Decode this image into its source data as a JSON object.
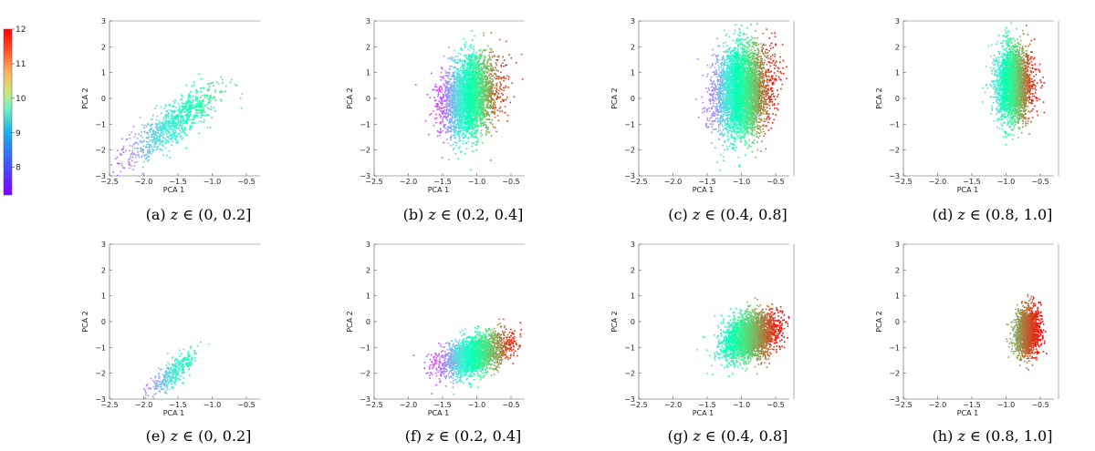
{
  "colorbar": {
    "ticks": [
      "12",
      "11",
      "10",
      "9",
      "8"
    ],
    "range": [
      7.2,
      12
    ],
    "colormap": "rainbow",
    "tick_values": [
      12,
      11,
      10,
      9,
      8
    ]
  },
  "chart_data": [
    {
      "type": "scatter",
      "panel": "a",
      "xlabel": "PCA 1",
      "ylabel": "PCA 2",
      "xlim": [
        -2.5,
        -0.3
      ],
      "ylim": [
        -3,
        3
      ],
      "xticks": [
        "−2.5",
        "−2.0",
        "−1.5",
        "−1.0",
        "−0.5"
      ],
      "yticks": [
        "3",
        "2",
        "1",
        "0",
        "−1",
        "−2",
        "−3"
      ],
      "caption_prefix": "(a) ",
      "caption_math": "z",
      "caption_suffix": " ∈ (0, 0.2]",
      "cloud": {
        "center": [
          -1.62,
          -1.0
        ],
        "spread": [
          0.35,
          0.75
        ],
        "corr": 0.85,
        "n": 900,
        "color_range": [
          7.8,
          10.4
        ]
      }
    },
    {
      "type": "scatter",
      "panel": "b",
      "xlabel": "PCA 1",
      "ylabel": "PCA 2",
      "xlim": [
        -2.5,
        -0.3
      ],
      "ylim": [
        -3,
        3
      ],
      "xticks": [
        "−2.5",
        "−2.0",
        "−1.5",
        "−1.0",
        "−0.5"
      ],
      "yticks": [
        "3",
        "2",
        "1",
        "0",
        "−1",
        "−2",
        "−3"
      ],
      "caption_prefix": "(b) ",
      "caption_math": "z",
      "caption_suffix": " ∈ (0.2, 0.4]",
      "cloud": {
        "center": [
          -1.12,
          0.1
        ],
        "spread": [
          0.2,
          0.75
        ],
        "corr": 0.2,
        "n": 3500,
        "color_range": [
          7.6,
          11.6
        ]
      }
    },
    {
      "type": "scatter",
      "panel": "c",
      "xlabel": "PCA 1",
      "ylabel": "PCA 2",
      "xlim": [
        -2.5,
        -0.3
      ],
      "ylim": [
        -3,
        3
      ],
      "xticks": [
        "−2.5",
        "−2.0",
        "−1.5",
        "−1.0",
        "−0.5"
      ],
      "yticks": [
        "3",
        "2",
        "1",
        "0",
        "−1",
        "−2",
        "−3"
      ],
      "caption_prefix": "(c) ",
      "caption_math": "z",
      "caption_suffix": " ∈ (0.4, 0.8]",
      "cloud": {
        "center": [
          -1.0,
          0.3
        ],
        "spread": [
          0.2,
          0.85
        ],
        "corr": 0.1,
        "n": 4500,
        "color_range": [
          8.0,
          11.8
        ]
      }
    },
    {
      "type": "scatter",
      "panel": "d",
      "xlabel": "PCA 1",
      "ylabel": "PCA 2",
      "xlim": [
        -2.5,
        -0.3
      ],
      "ylim": [
        -3,
        3
      ],
      "xticks": [
        "−2.5",
        "−2.0",
        "−1.5",
        "−1.0",
        "−0.5"
      ],
      "yticks": [
        "3",
        "2",
        "1",
        "0",
        "−1",
        "−2",
        "−3"
      ],
      "caption_prefix": "(d) ",
      "caption_math": "z",
      "caption_suffix": " ∈ (0.8, 1.0]",
      "cloud": {
        "center": [
          -0.9,
          0.6
        ],
        "spread": [
          0.13,
          0.7
        ],
        "corr": 0.0,
        "n": 3000,
        "color_range": [
          8.8,
          11.8
        ]
      }
    },
    {
      "type": "scatter",
      "panel": "e",
      "xlabel": "PCA 1",
      "ylabel": "PCA 2",
      "xlim": [
        -2.5,
        -0.3
      ],
      "ylim": [
        -3,
        3
      ],
      "xticks": [
        "−2.5",
        "−2.0",
        "−1.5",
        "−1.0",
        "−0.5"
      ],
      "yticks": [
        "3",
        "2",
        "1",
        "0",
        "−1",
        "−2",
        "−3"
      ],
      "caption_prefix": "(e) ",
      "caption_math": "z",
      "caption_suffix": " ∈ (0, 0.2]",
      "cloud": {
        "center": [
          -1.6,
          -2.0
        ],
        "spread": [
          0.18,
          0.45
        ],
        "corr": 0.8,
        "n": 350,
        "color_range": [
          7.8,
          10.0
        ]
      }
    },
    {
      "type": "scatter",
      "panel": "f",
      "xlabel": "PCA 1",
      "ylabel": "PCA 2",
      "xlim": [
        -2.5,
        -0.3
      ],
      "ylim": [
        -3,
        3
      ],
      "xticks": [
        "−2.5",
        "−2.0",
        "−1.5",
        "−1.0",
        "−0.5"
      ],
      "yticks": [
        "3",
        "2",
        "1",
        "0",
        "−1",
        "−2",
        "−3"
      ],
      "caption_prefix": "(f) ",
      "caption_math": "z",
      "caption_suffix": " ∈ (0.2, 0.4]",
      "cloud": {
        "center": [
          -1.05,
          -1.25
        ],
        "spread": [
          0.25,
          0.4
        ],
        "corr": 0.45,
        "n": 2500,
        "color_range": [
          7.6,
          11.8
        ]
      }
    },
    {
      "type": "scatter",
      "panel": "g",
      "xlabel": "PCA 1",
      "ylabel": "PCA 2",
      "xlim": [
        -2.5,
        -0.3
      ],
      "ylim": [
        -3,
        3
      ],
      "xticks": [
        "−2.5",
        "−2.0",
        "−1.5",
        "−1.0",
        "−0.5"
      ],
      "yticks": [
        "3",
        "2",
        "1",
        "0",
        "−1",
        "−2",
        "−3"
      ],
      "caption_prefix": "(g) ",
      "caption_math": "z",
      "caption_suffix": " ∈ (0.4, 0.8]",
      "cloud": {
        "center": [
          -0.88,
          -0.55
        ],
        "spread": [
          0.2,
          0.45
        ],
        "corr": 0.3,
        "n": 3000,
        "color_range": [
          9.2,
          12.0
        ]
      }
    },
    {
      "type": "scatter",
      "panel": "h",
      "xlabel": "PCA 1",
      "ylabel": "PCA 2",
      "xlim": [
        -2.5,
        -0.3
      ],
      "ylim": [
        -3,
        3
      ],
      "xticks": [
        "−2.5",
        "−2.0",
        "−1.5",
        "−1.0",
        "−0.5"
      ],
      "yticks": [
        "3",
        "2",
        "1",
        "0",
        "−1",
        "−2",
        "−3"
      ],
      "caption_prefix": "(h) ",
      "caption_math": "z",
      "caption_suffix": " ∈ (0.8, 1.0]",
      "cloud": {
        "center": [
          -0.7,
          -0.35
        ],
        "spread": [
          0.09,
          0.45
        ],
        "corr": 0.1,
        "n": 1800,
        "color_range": [
          10.8,
          12.0
        ]
      }
    }
  ]
}
